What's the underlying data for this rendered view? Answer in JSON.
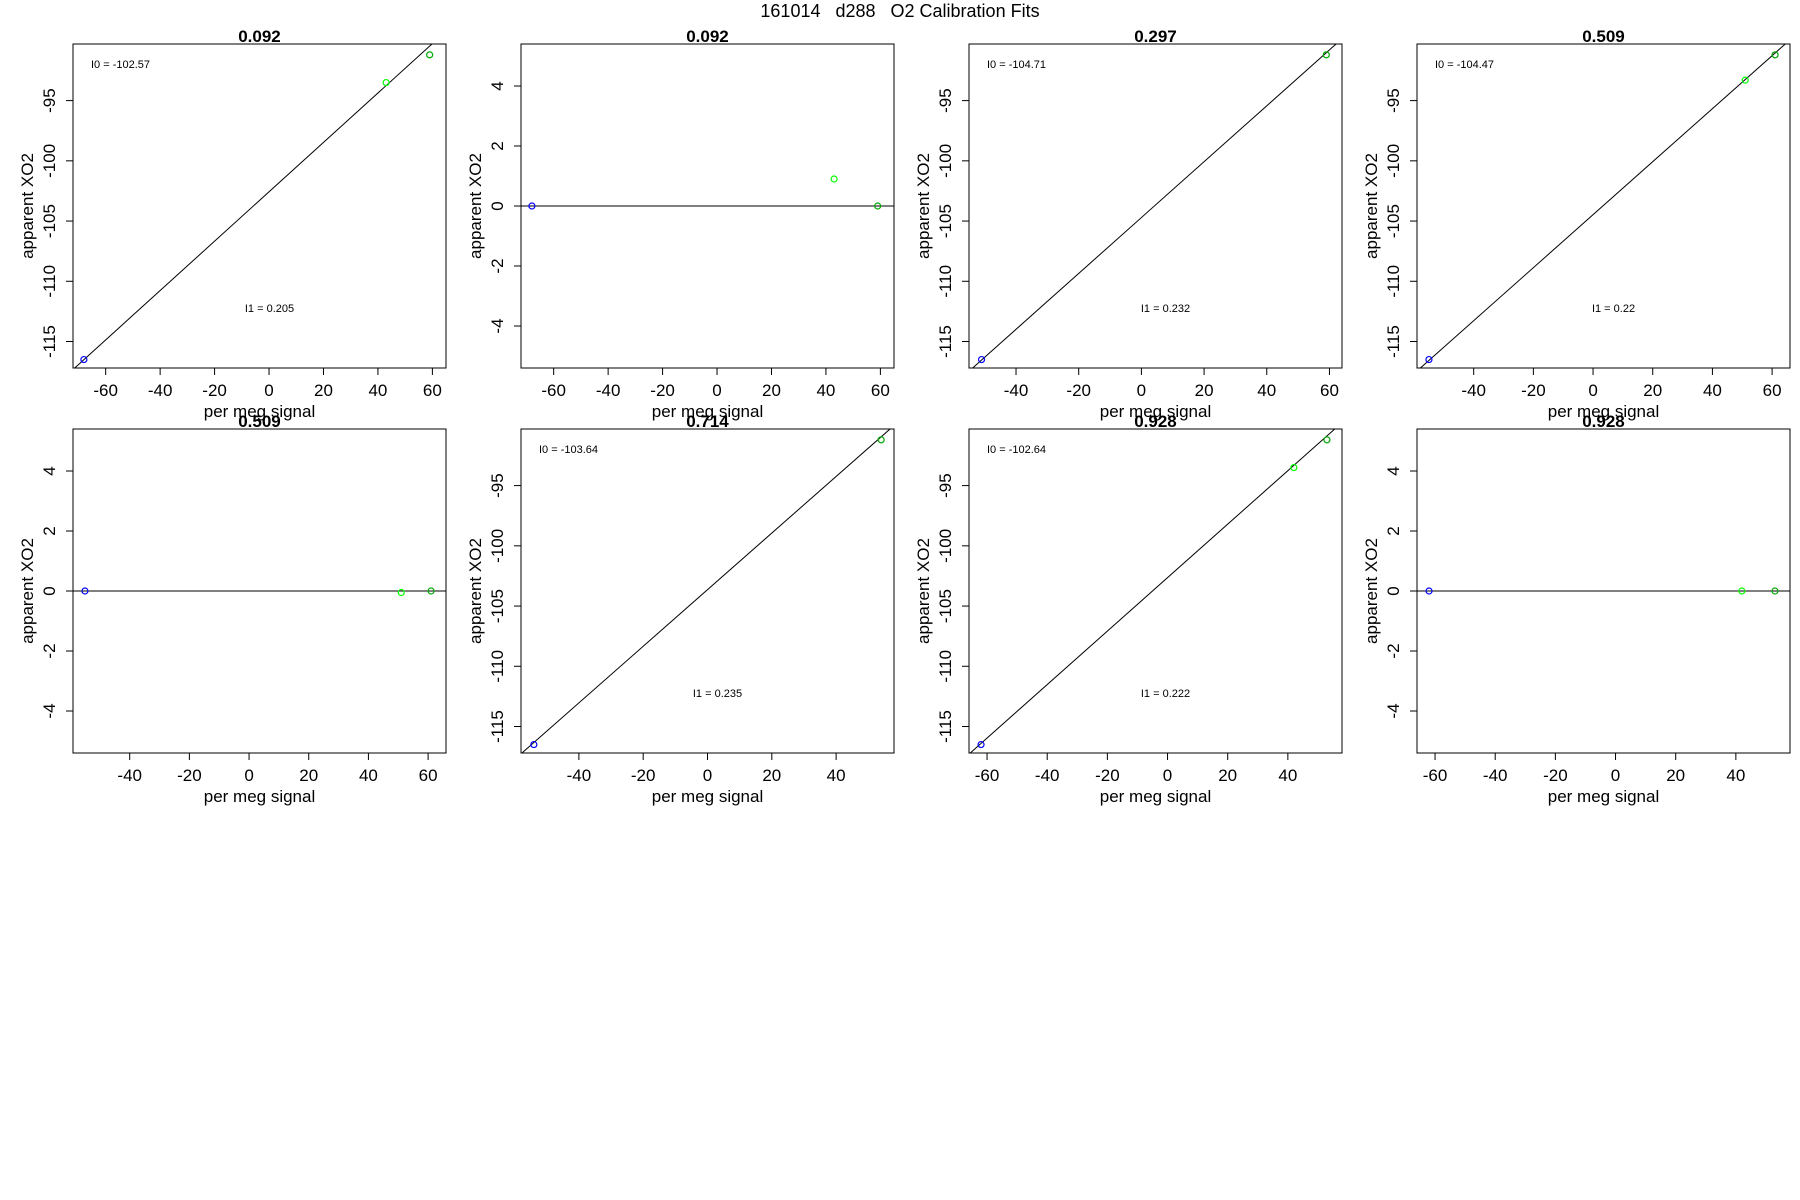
{
  "page": {
    "title": "161014   d288   O2 Calibration Fits"
  },
  "chart_data": [
    {
      "type": "scatter",
      "title": "0.092",
      "xlabel": "per meg signal",
      "ylabel": "apparent XO2",
      "xlim": [
        -72,
        65
      ],
      "ylim": [
        -117.2,
        -90.3
      ],
      "xticks": [
        -60,
        -40,
        -20,
        0,
        20,
        40,
        60
      ],
      "yticks": [
        -115,
        -110,
        -105,
        -100,
        -95
      ],
      "points": [
        {
          "x": -68,
          "y": -116.5,
          "color": "#0000ff"
        },
        {
          "x": 43,
          "y": -93.5,
          "color": "#00ff00"
        },
        {
          "x": 59,
          "y": -91.2,
          "color": "#00aa00"
        }
      ],
      "fit_line": {
        "intercept": -102.57,
        "slope": 0.205
      },
      "annotations": [
        "I0 =  -102.57",
        "I1 =  0.205"
      ],
      "grid": false
    },
    {
      "type": "scatter",
      "title": "0.092",
      "xlabel": "per meg signal",
      "ylabel": "apparent XO2",
      "xlim": [
        -72,
        65
      ],
      "ylim": [
        -5.4,
        5.4
      ],
      "xticks": [
        -60,
        -40,
        -20,
        0,
        20,
        40,
        60
      ],
      "yticks": [
        -4,
        -2,
        0,
        2,
        4
      ],
      "points": [
        {
          "x": -68,
          "y": 0,
          "color": "#0000ff"
        },
        {
          "x": 43,
          "y": 0.9,
          "color": "#00ff00"
        },
        {
          "x": 59,
          "y": 0,
          "color": "#00aa00"
        }
      ],
      "fit_line": {
        "intercept": 0,
        "slope": 0
      },
      "annotations": [],
      "grid": false
    },
    {
      "type": "scatter",
      "title": "0.297",
      "xlabel": "per meg signal",
      "ylabel": "apparent XO2",
      "xlim": [
        -55,
        64
      ],
      "ylim": [
        -117.2,
        -90.3
      ],
      "xticks": [
        -40,
        -20,
        0,
        20,
        40,
        60
      ],
      "yticks": [
        -115,
        -110,
        -105,
        -100,
        -95
      ],
      "points": [
        {
          "x": -51,
          "y": -116.5,
          "color": "#0000ff"
        },
        {
          "x": 59,
          "y": -91.2,
          "color": "#00aa00"
        }
      ],
      "fit_line": {
        "intercept": -104.71,
        "slope": 0.232
      },
      "annotations": [
        "I0 =  -104.71",
        "I1 =  0.232"
      ],
      "grid": false
    },
    {
      "type": "scatter",
      "title": "0.509",
      "xlabel": "per meg signal",
      "ylabel": "apparent XO2",
      "xlim": [
        -59,
        66
      ],
      "ylim": [
        -117.2,
        -90.3
      ],
      "xticks": [
        -40,
        -20,
        0,
        20,
        40,
        60
      ],
      "yticks": [
        -115,
        -110,
        -105,
        -100,
        -95
      ],
      "points": [
        {
          "x": -55,
          "y": -116.5,
          "color": "#0000ff"
        },
        {
          "x": 51,
          "y": -93.3,
          "color": "#00ff00"
        },
        {
          "x": 61,
          "y": -91.2,
          "color": "#00aa00"
        }
      ],
      "fit_line": {
        "intercept": -104.47,
        "slope": 0.22
      },
      "annotations": [
        "I0 =  -104.47",
        "I1 =  0.22"
      ],
      "grid": false
    },
    {
      "type": "scatter",
      "title": "0.509",
      "xlabel": "per meg signal",
      "ylabel": "apparent XO2",
      "xlim": [
        -59,
        66
      ],
      "ylim": [
        -5.4,
        5.4
      ],
      "xticks": [
        -40,
        -20,
        0,
        20,
        40,
        60
      ],
      "yticks": [
        -4,
        -2,
        0,
        2,
        4
      ],
      "points": [
        {
          "x": -55,
          "y": 0,
          "color": "#0000ff"
        },
        {
          "x": 51,
          "y": -0.05,
          "color": "#00ff00"
        },
        {
          "x": 61,
          "y": 0,
          "color": "#00aa00"
        }
      ],
      "fit_line": {
        "intercept": 0,
        "slope": 0
      },
      "annotations": [],
      "grid": false
    },
    {
      "type": "scatter",
      "title": "0.714",
      "xlabel": "per meg signal",
      "ylabel": "apparent XO2",
      "xlim": [
        -58,
        58
      ],
      "ylim": [
        -117.2,
        -90.3
      ],
      "xticks": [
        -40,
        -20,
        0,
        20,
        40
      ],
      "yticks": [
        -115,
        -110,
        -105,
        -100,
        -95
      ],
      "points": [
        {
          "x": -54,
          "y": -116.5,
          "color": "#0000ff"
        },
        {
          "x": 54,
          "y": -91.2,
          "color": "#00aa00"
        }
      ],
      "fit_line": {
        "intercept": -103.64,
        "slope": 0.235
      },
      "annotations": [
        "I0 =  -103.64",
        "I1 =  0.235"
      ],
      "grid": false
    },
    {
      "type": "scatter",
      "title": "0.928",
      "xlabel": "per meg signal",
      "ylabel": "apparent XO2",
      "xlim": [
        -66,
        58
      ],
      "ylim": [
        -117.2,
        -90.3
      ],
      "xticks": [
        -60,
        -40,
        -20,
        0,
        20,
        40
      ],
      "yticks": [
        -115,
        -110,
        -105,
        -100,
        -95
      ],
      "points": [
        {
          "x": -62,
          "y": -116.5,
          "color": "#0000ff"
        },
        {
          "x": 42,
          "y": -93.5,
          "color": "#00ff00"
        },
        {
          "x": 53,
          "y": -91.2,
          "color": "#00aa00"
        }
      ],
      "fit_line": {
        "intercept": -102.64,
        "slope": 0.222
      },
      "annotations": [
        "I0 =  -102.64",
        "I1 =  0.222"
      ],
      "grid": false
    },
    {
      "type": "scatter",
      "title": "0.928",
      "xlabel": "per meg signal",
      "ylabel": "apparent XO2",
      "xlim": [
        -66,
        58
      ],
      "ylim": [
        -5.4,
        5.4
      ],
      "xticks": [
        -60,
        -40,
        -20,
        0,
        20,
        40
      ],
      "yticks": [
        -4,
        -2,
        0,
        2,
        4
      ],
      "points": [
        {
          "x": -62,
          "y": 0,
          "color": "#0000ff"
        },
        {
          "x": 42,
          "y": 0,
          "color": "#00ff00"
        },
        {
          "x": 53,
          "y": 0,
          "color": "#00aa00"
        }
      ],
      "fit_line": {
        "intercept": 0,
        "slope": 0
      },
      "annotations": [],
      "grid": false
    }
  ]
}
